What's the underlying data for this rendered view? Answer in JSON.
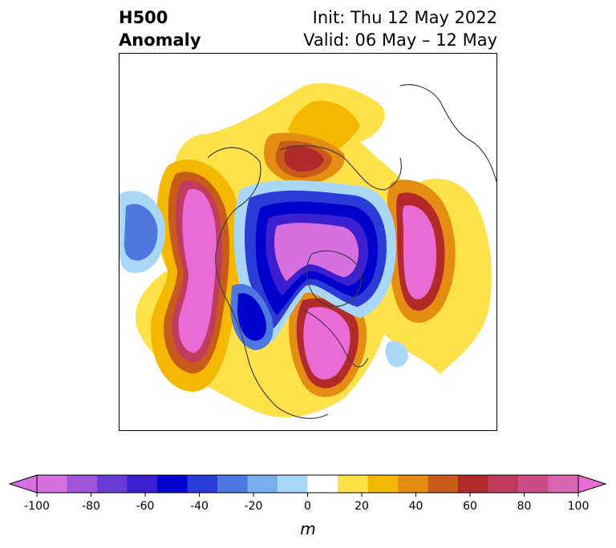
{
  "title": {
    "left_line1": "H500",
    "left_line2": "Anomaly",
    "init": "Init: Thu 12 May 2022",
    "valid": "Valid: 06 May – 12 May"
  },
  "colorbar": {
    "unit": "m",
    "ticks": [
      "-100",
      "-80",
      "-60",
      "-40",
      "-20",
      "0",
      "20",
      "40",
      "60",
      "80",
      "100"
    ],
    "colors": [
      "#d86fe0",
      "#9e55d9",
      "#6a3ad5",
      "#3b1fd0",
      "#0000cc",
      "#2a3bd8",
      "#4f77e0",
      "#77aeee",
      "#a8d7f8",
      "#ffffff",
      "#ffe14a",
      "#f5b800",
      "#e48d12",
      "#c85a1a",
      "#b32a2a",
      "#c23b5f",
      "#cc4d85",
      "#d865b0"
    ],
    "under_color": "#d86fe0",
    "over_color": "#e86bd6"
  }
}
